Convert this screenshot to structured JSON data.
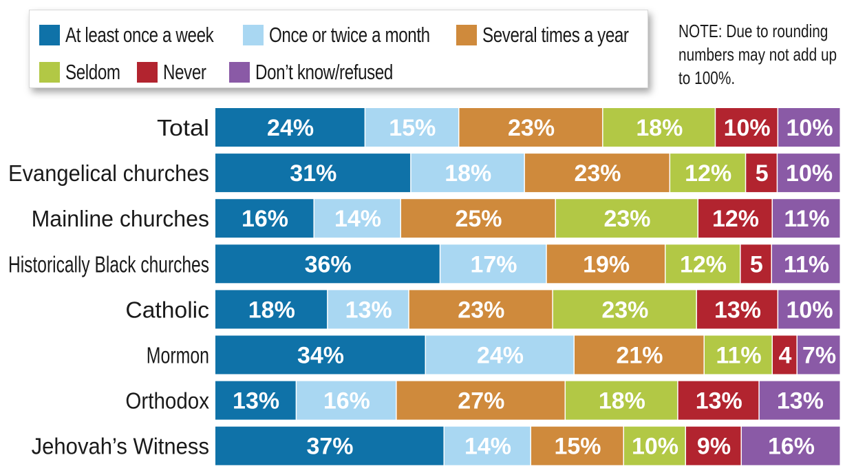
{
  "legend": {
    "items": [
      {
        "label": "At least once a week",
        "color": "#0f72a8"
      },
      {
        "label": "Once or twice a month",
        "color": "#a9d7f2"
      },
      {
        "label": "Several times a year",
        "color": "#cf8a3c"
      },
      {
        "label": "Seldom",
        "color": "#b2c845"
      },
      {
        "label": "Never",
        "color": "#b2242f"
      },
      {
        "label": "Don’t know/refused",
        "color": "#8a5aa6"
      }
    ]
  },
  "note": "NOTE: Due to rounding numbers may not add up to 100%.",
  "chart_data": {
    "type": "bar",
    "orientation": "horizontal",
    "stacked": true,
    "categories": [
      "Total",
      "Evangelical churches",
      "Mainline churches",
      "Historically Black churches",
      "Catholic",
      "Mormon",
      "Orthodox",
      "Jehovah’s Witness"
    ],
    "series": [
      {
        "name": "At least once a week",
        "color": "#0f72a8",
        "values": [
          24,
          31,
          16,
          36,
          18,
          34,
          13,
          37
        ],
        "labels": [
          "24%",
          "31%",
          "16%",
          "36%",
          "18%",
          "34%",
          "13%",
          "37%"
        ]
      },
      {
        "name": "Once or twice a month",
        "color": "#a9d7f2",
        "values": [
          15,
          18,
          14,
          17,
          13,
          24,
          16,
          14
        ],
        "labels": [
          "15%",
          "18%",
          "14%",
          "17%",
          "13%",
          "24%",
          "16%",
          "14%"
        ]
      },
      {
        "name": "Several times a year",
        "color": "#cf8a3c",
        "values": [
          23,
          23,
          25,
          19,
          23,
          21,
          27,
          15
        ],
        "labels": [
          "23%",
          "23%",
          "25%",
          "19%",
          "23%",
          "21%",
          "27%",
          "15%"
        ]
      },
      {
        "name": "Seldom",
        "color": "#b2c845",
        "values": [
          18,
          12,
          23,
          12,
          23,
          11,
          18,
          10
        ],
        "labels": [
          "18%",
          "12%",
          "23%",
          "12%",
          "23%",
          "11%",
          "18%",
          "10%"
        ]
      },
      {
        "name": "Never",
        "color": "#b2242f",
        "values": [
          10,
          5,
          12,
          5,
          13,
          4,
          13,
          9
        ],
        "labels": [
          "10%",
          "5",
          "12%",
          "5",
          "13%",
          "4",
          "13%",
          "9%"
        ]
      },
      {
        "name": "Don’t know/refused",
        "color": "#8a5aa6",
        "values": [
          10,
          10,
          11,
          11,
          10,
          7,
          13,
          16
        ],
        "labels": [
          "10%",
          "10%",
          "11%",
          "11%",
          "10%",
          "7%",
          "13%",
          "16%"
        ]
      }
    ],
    "label_colors": {
      "At least once a week": "#ffffff",
      "Once or twice a month": "#ffffff",
      "Several times a year": "#ffffff",
      "Seldom": "#ffffff",
      "Never": "#ffffff",
      "Don’t know/refused": "#ffffff"
    }
  }
}
